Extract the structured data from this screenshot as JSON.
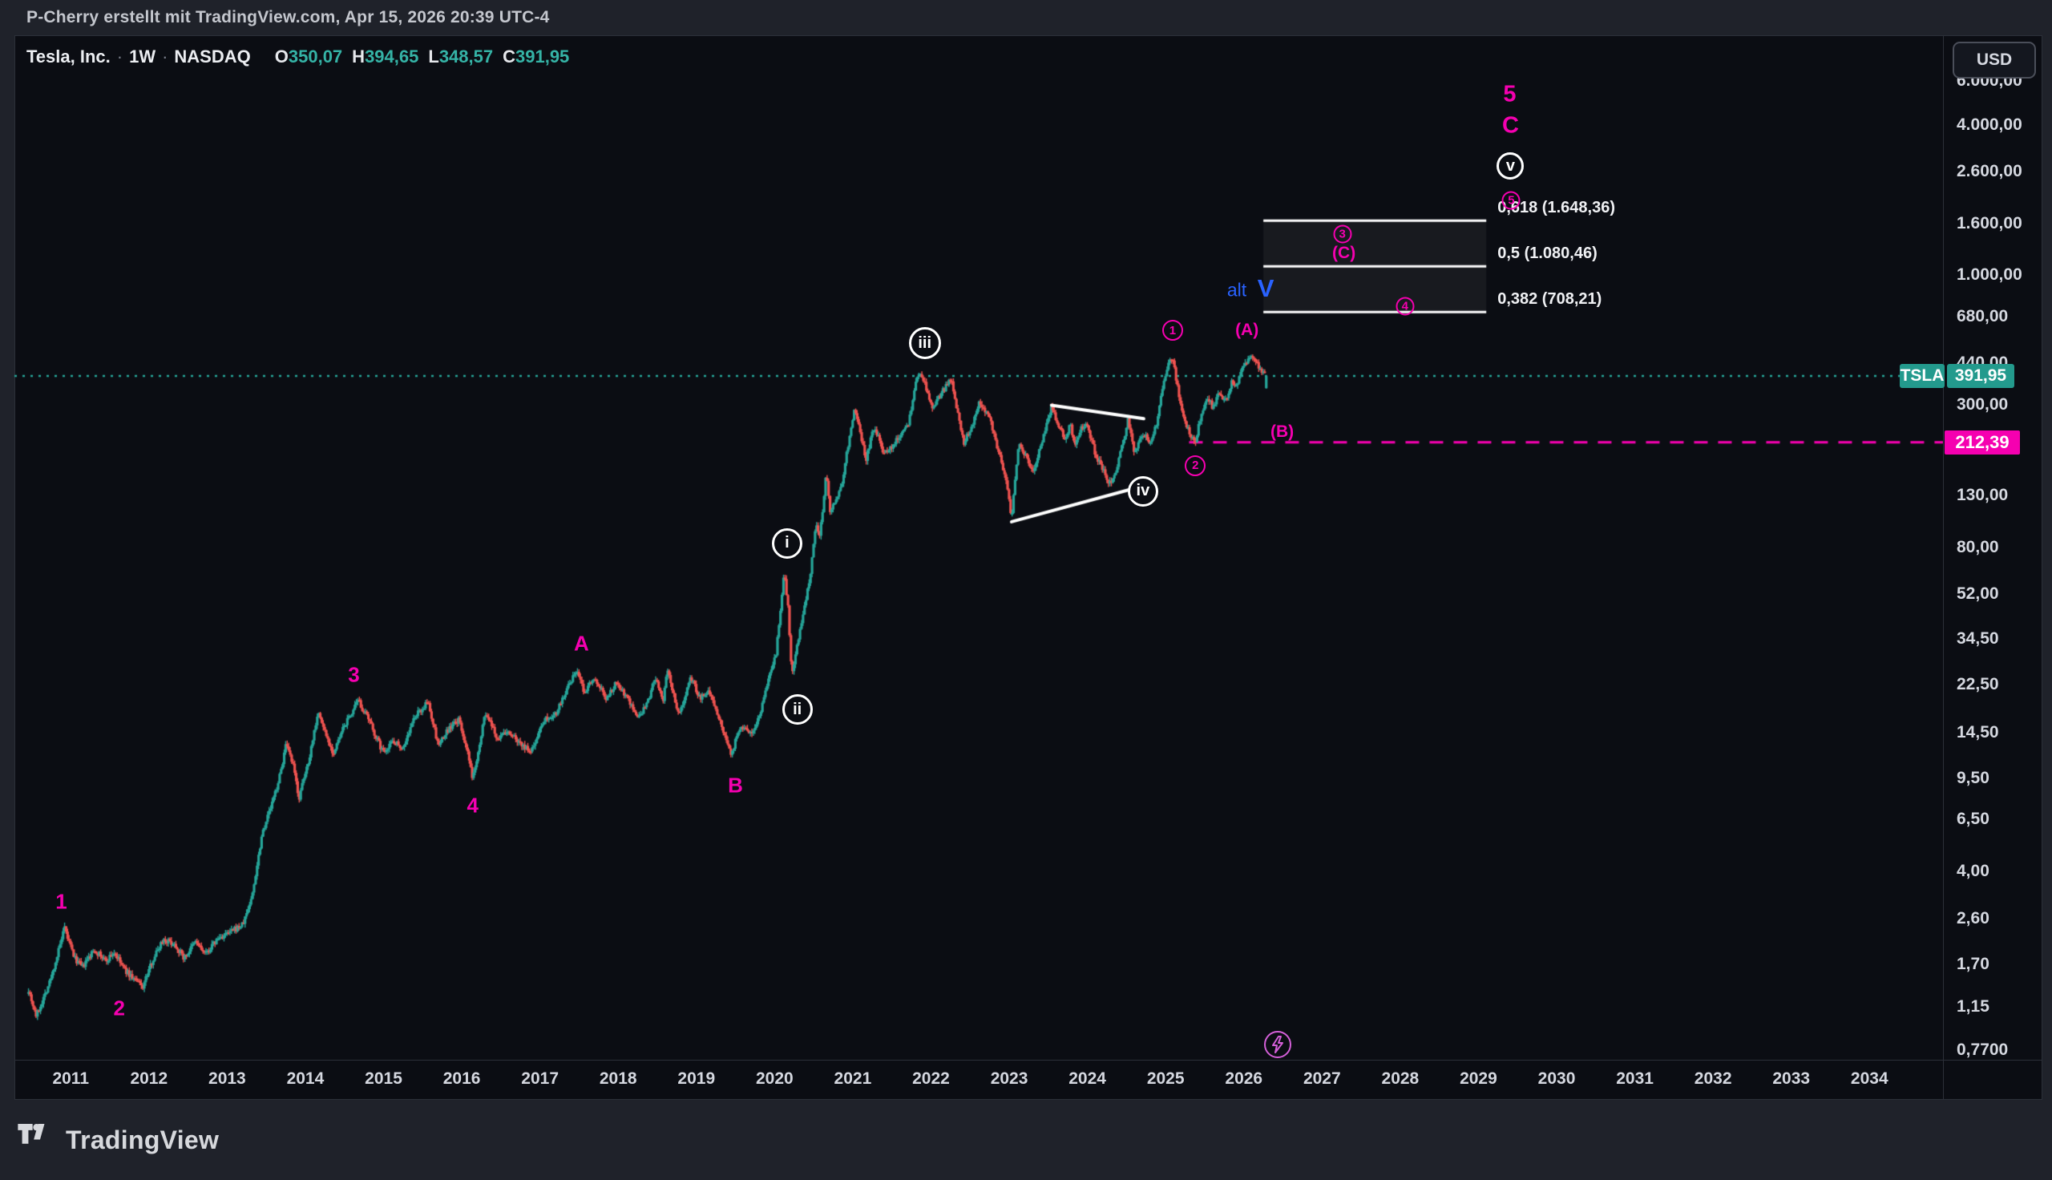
{
  "header": {
    "attribution": "P-Cherry erstellt mit TradingView.com, Apr 15, 2026 20:39 UTC-4"
  },
  "legend": {
    "symbol": "Tesla, Inc.",
    "separator": "·",
    "interval": "1W",
    "exchange": "NASDAQ",
    "ohlc": [
      {
        "key": "O",
        "value": "350,07"
      },
      {
        "key": "H",
        "value": "394,65"
      },
      {
        "key": "L",
        "value": "348,57"
      },
      {
        "key": "C",
        "value": "391,95"
      }
    ]
  },
  "price_axis": {
    "currency": "USD",
    "ticks": [
      {
        "label": "6.000,00",
        "value": 6000
      },
      {
        "label": "4.000,00",
        "value": 4000
      },
      {
        "label": "2.600,00",
        "value": 2600
      },
      {
        "label": "1.600,00",
        "value": 1600
      },
      {
        "label": "1.000,00",
        "value": 1000
      },
      {
        "label": "680,00",
        "value": 680
      },
      {
        "label": "440,00",
        "value": 440
      },
      {
        "label": "300,00",
        "value": 300
      },
      {
        "label": "130,00",
        "value": 130
      },
      {
        "label": "80,00",
        "value": 80
      },
      {
        "label": "52,00",
        "value": 52
      },
      {
        "label": "34,50",
        "value": 34.5
      },
      {
        "label": "22,50",
        "value": 22.5
      },
      {
        "label": "14,50",
        "value": 14.5
      },
      {
        "label": "9,50",
        "value": 9.5
      },
      {
        "label": "6,50",
        "value": 6.5
      },
      {
        "label": "4,00",
        "value": 4
      },
      {
        "label": "2,60",
        "value": 2.6
      },
      {
        "label": "1,70",
        "value": 1.7
      },
      {
        "label": "1,15",
        "value": 1.15
      },
      {
        "label": "0,7700",
        "value": 0.77
      }
    ],
    "symbol_badge": {
      "symbol": "TSLA",
      "price": "391,95"
    },
    "alert_badge": {
      "price": "212,39"
    }
  },
  "time_axis": {
    "years": [
      2011,
      2012,
      2013,
      2014,
      2015,
      2016,
      2017,
      2018,
      2019,
      2020,
      2021,
      2022,
      2023,
      2024,
      2025,
      2026,
      2027,
      2028,
      2029,
      2030,
      2031,
      2032,
      2033,
      2034
    ]
  },
  "footer": {
    "brand": "TradingView"
  },
  "icons": {
    "bolt": "lightning-icon",
    "brand": "tradingview-logo"
  },
  "colors": {
    "up": "#26a69a",
    "down": "#ef5350",
    "accent_pink": "#f500b0",
    "accent_blue": "#2962ff",
    "badge_teal": "#239a8d",
    "bolt_pink": "#d45fd8",
    "pane_bg": "#0b0d13",
    "frame_bg": "#1f222a"
  },
  "chart_data": {
    "type": "candlestick",
    "title": "Tesla, Inc. · 1W · NASDAQ",
    "symbol": "TSLA",
    "interval": "1W",
    "currency": "USD",
    "grid": false,
    "x_axis": {
      "min": 2010.28,
      "max": 2034.94
    },
    "y_axis": {
      "scale": "log",
      "price_top": 9156,
      "price_bottom": 0.703
    },
    "bars_per_year": 52,
    "last_bar": {
      "open": 350.07,
      "high": 394.65,
      "low": 348.57,
      "close": 391.95
    },
    "current_price_line": {
      "price": 391.95,
      "style": "dotted",
      "color": "#26a69a"
    },
    "alert_line": {
      "price": 212.39,
      "start_year": 2025.3,
      "style": "dashed",
      "color": "#f500b0"
    },
    "fib_retracement": {
      "x_start_year": 2026.25,
      "x_end_year": 2029.1,
      "fill": "rgba(255,255,255,0.055)",
      "line_color": "#ffffff",
      "levels": [
        {
          "ratio": "0,618",
          "price": 1648.36,
          "label": "0,618 (1.648,36)"
        },
        {
          "ratio": "0,5",
          "price": 1080.46,
          "label": "0,5 (1.080,46)"
        },
        {
          "ratio": "0,382",
          "price": 708.21,
          "label": "0,382 (708,21)"
        }
      ]
    },
    "trendlines": [
      {
        "points": [
          [
            2023.54,
            299.3
          ],
          [
            2024.72,
            264
          ]
        ],
        "color": "#ffffff",
        "width": 4
      },
      {
        "points": [
          [
            2023.03,
            101.8
          ],
          [
            2024.72,
            142
          ]
        ],
        "color": "#ffffff",
        "width": 4
      }
    ],
    "price_path_anchors": [
      [
        2010.46,
        1.35
      ],
      [
        2010.56,
        1.05
      ],
      [
        2010.75,
        1.5
      ],
      [
        2010.92,
        2.36
      ],
      [
        2011.05,
        1.8
      ],
      [
        2011.15,
        1.65
      ],
      [
        2011.3,
        1.95
      ],
      [
        2011.45,
        1.75
      ],
      [
        2011.55,
        1.9
      ],
      [
        2011.7,
        1.6
      ],
      [
        2011.92,
        1.38
      ],
      [
        2012.05,
        1.78
      ],
      [
        2012.18,
        2.15
      ],
      [
        2012.33,
        2.05
      ],
      [
        2012.45,
        1.8
      ],
      [
        2012.6,
        2.1
      ],
      [
        2012.72,
        1.86
      ],
      [
        2012.88,
        2.15
      ],
      [
        2013.0,
        2.25
      ],
      [
        2013.2,
        2.45
      ],
      [
        2013.32,
        3.2
      ],
      [
        2013.45,
        5.8
      ],
      [
        2013.58,
        7.6
      ],
      [
        2013.68,
        9.9
      ],
      [
        2013.75,
        12.9
      ],
      [
        2013.84,
        10.8
      ],
      [
        2013.92,
        7.9
      ],
      [
        2014.05,
        11.5
      ],
      [
        2014.16,
        17.6
      ],
      [
        2014.28,
        13.8
      ],
      [
        2014.36,
        11.9
      ],
      [
        2014.5,
        15.5
      ],
      [
        2014.68,
        19.4
      ],
      [
        2014.82,
        16.0
      ],
      [
        2014.99,
        12.1
      ],
      [
        2015.12,
        13.5
      ],
      [
        2015.25,
        12.6
      ],
      [
        2015.4,
        16.8
      ],
      [
        2015.57,
        19.2
      ],
      [
        2015.7,
        12.8
      ],
      [
        2015.82,
        14.8
      ],
      [
        2015.96,
        16.3
      ],
      [
        2016.05,
        13.0
      ],
      [
        2016.14,
        9.4
      ],
      [
        2016.3,
        17.4
      ],
      [
        2016.45,
        13.8
      ],
      [
        2016.6,
        14.6
      ],
      [
        2016.76,
        13.1
      ],
      [
        2016.88,
        12.0
      ],
      [
        2017.05,
        16.4
      ],
      [
        2017.2,
        17.3
      ],
      [
        2017.32,
        20.8
      ],
      [
        2017.47,
        25.8
      ],
      [
        2017.57,
        20.9
      ],
      [
        2017.68,
        24.4
      ],
      [
        2017.85,
        19.9
      ],
      [
        2017.98,
        23.1
      ],
      [
        2018.12,
        20.0
      ],
      [
        2018.26,
        16.4
      ],
      [
        2018.4,
        19.8
      ],
      [
        2018.47,
        24.4
      ],
      [
        2018.57,
        19.1
      ],
      [
        2018.63,
        25.6
      ],
      [
        2018.78,
        16.9
      ],
      [
        2018.92,
        24.3
      ],
      [
        2019.05,
        20.0
      ],
      [
        2019.18,
        21.2
      ],
      [
        2019.33,
        15.3
      ],
      [
        2019.44,
        11.8
      ],
      [
        2019.57,
        15.4
      ],
      [
        2019.7,
        14.4
      ],
      [
        2019.82,
        17.2
      ],
      [
        2019.92,
        23.8
      ],
      [
        2020.02,
        30.0
      ],
      [
        2020.12,
        64.0
      ],
      [
        2020.17,
        47.0
      ],
      [
        2020.22,
        24.5
      ],
      [
        2020.33,
        38.0
      ],
      [
        2020.45,
        60.0
      ],
      [
        2020.53,
        103
      ],
      [
        2020.58,
        89
      ],
      [
        2020.66,
        160
      ],
      [
        2020.71,
        112
      ],
      [
        2020.85,
        140
      ],
      [
        2020.95,
        215
      ],
      [
        2021.02,
        292
      ],
      [
        2021.1,
        230
      ],
      [
        2021.17,
        182
      ],
      [
        2021.28,
        250
      ],
      [
        2021.38,
        192
      ],
      [
        2021.5,
        205
      ],
      [
        2021.62,
        230
      ],
      [
        2021.72,
        258
      ],
      [
        2021.8,
        360
      ],
      [
        2021.86,
        412
      ],
      [
        2021.95,
        340
      ],
      [
        2022.02,
        285
      ],
      [
        2022.12,
        330
      ],
      [
        2022.26,
        380
      ],
      [
        2022.42,
        210
      ],
      [
        2022.55,
        260
      ],
      [
        2022.62,
        308
      ],
      [
        2022.75,
        270
      ],
      [
        2022.85,
        200
      ],
      [
        2022.95,
        155
      ],
      [
        2023.03,
        105
      ],
      [
        2023.12,
        208
      ],
      [
        2023.22,
        185
      ],
      [
        2023.3,
        158
      ],
      [
        2023.42,
        215
      ],
      [
        2023.54,
        293
      ],
      [
        2023.65,
        240
      ],
      [
        2023.72,
        220
      ],
      [
        2023.78,
        250
      ],
      [
        2023.84,
        205
      ],
      [
        2023.92,
        240
      ],
      [
        2024.0,
        250
      ],
      [
        2024.1,
        190
      ],
      [
        2024.2,
        165
      ],
      [
        2024.3,
        142
      ],
      [
        2024.4,
        178
      ],
      [
        2024.52,
        262
      ],
      [
        2024.6,
        195
      ],
      [
        2024.7,
        230
      ],
      [
        2024.8,
        215
      ],
      [
        2024.88,
        250
      ],
      [
        2024.96,
        350
      ],
      [
        2025.02,
        430
      ],
      [
        2025.06,
        472
      ],
      [
        2025.1,
        440
      ],
      [
        2025.16,
        340
      ],
      [
        2025.24,
        260
      ],
      [
        2025.32,
        228
      ],
      [
        2025.38,
        215
      ],
      [
        2025.46,
        280
      ],
      [
        2025.54,
        320
      ],
      [
        2025.6,
        295
      ],
      [
        2025.68,
        330
      ],
      [
        2025.76,
        308
      ],
      [
        2025.84,
        368
      ],
      [
        2025.9,
        350
      ],
      [
        2025.98,
        425
      ],
      [
        2026.06,
        462
      ],
      [
        2026.1,
        470
      ],
      [
        2026.16,
        440
      ],
      [
        2026.22,
        415
      ],
      [
        2026.29,
        392
      ]
    ],
    "annotations": [
      {
        "id": "wave-1",
        "text": "1",
        "style": "pink",
        "year": 2010.88,
        "price": 3.03
      },
      {
        "id": "wave-2",
        "text": "2",
        "style": "pink",
        "year": 2011.62,
        "price": 1.13
      },
      {
        "id": "wave-3",
        "text": "3",
        "style": "pink",
        "year": 2014.62,
        "price": 24.7
      },
      {
        "id": "wave-4",
        "text": "4",
        "style": "pink",
        "year": 2016.14,
        "price": 7.38
      },
      {
        "id": "wave-a",
        "text": "A",
        "style": "pink",
        "year": 2017.53,
        "price": 33.0
      },
      {
        "id": "wave-b",
        "text": "B",
        "style": "pink",
        "year": 2019.5,
        "price": 8.89
      },
      {
        "id": "wave-i",
        "text": "i",
        "style": "circle-white",
        "d": 38,
        "year": 2020.16,
        "price": 83.3
      },
      {
        "id": "wave-ii",
        "text": "ii",
        "style": "circle-white",
        "d": 38,
        "year": 2020.29,
        "price": 17.9
      },
      {
        "id": "wave-iii",
        "text": "iii",
        "style": "circle-white",
        "d": 40,
        "year": 2021.92,
        "price": 531
      },
      {
        "id": "wave-iv",
        "text": "iv",
        "style": "circle-white",
        "d": 38,
        "year": 2024.71,
        "price": 135
      },
      {
        "id": "wave-v",
        "text": "v",
        "style": "circle-white",
        "d": 34,
        "year": 2029.41,
        "price": 2734
      },
      {
        "id": "wave-c1",
        "text": "1",
        "style": "circle-pink",
        "d": 26,
        "year": 2025.09,
        "price": 598
      },
      {
        "id": "wave-c2",
        "text": "2",
        "style": "circle-pink",
        "d": 26,
        "year": 2025.38,
        "price": 171
      },
      {
        "id": "wave-c3",
        "text": "3",
        "style": "circle-pink",
        "d": 23,
        "year": 2027.26,
        "price": 1459
      },
      {
        "id": "wave-c4",
        "text": "4",
        "style": "circle-pink",
        "d": 23,
        "year": 2028.06,
        "price": 748
      },
      {
        "id": "wave-c5",
        "text": "5",
        "style": "circle-pink",
        "d": 23,
        "year": 2029.42,
        "price": 1989
      },
      {
        "id": "wave-pa",
        "text": "(A)",
        "style": "pink-small",
        "year": 2026.04,
        "price": 598
      },
      {
        "id": "wave-pb",
        "text": "(B)",
        "style": "pink-small",
        "year": 2026.49,
        "price": 233
      },
      {
        "id": "wave-pc",
        "text": "(C)",
        "style": "pink-small",
        "year": 2027.28,
        "price": 1219
      },
      {
        "id": "target-5",
        "text": "5",
        "style": "pink-large",
        "year": 2029.4,
        "price": 5291
      },
      {
        "id": "target-c",
        "text": "C",
        "style": "pink-large",
        "year": 2029.41,
        "price": 3962
      },
      {
        "id": "alt-word",
        "text": "alt",
        "style": "blue",
        "year": 2025.91,
        "price": 867
      },
      {
        "id": "alt-v",
        "text": "V",
        "style": "blue-large",
        "year": 2026.28,
        "price": 880
      },
      {
        "id": "bolt",
        "text": "",
        "style": "lightning",
        "d": 34,
        "year": 2026.43,
        "price": 0.81
      }
    ]
  }
}
